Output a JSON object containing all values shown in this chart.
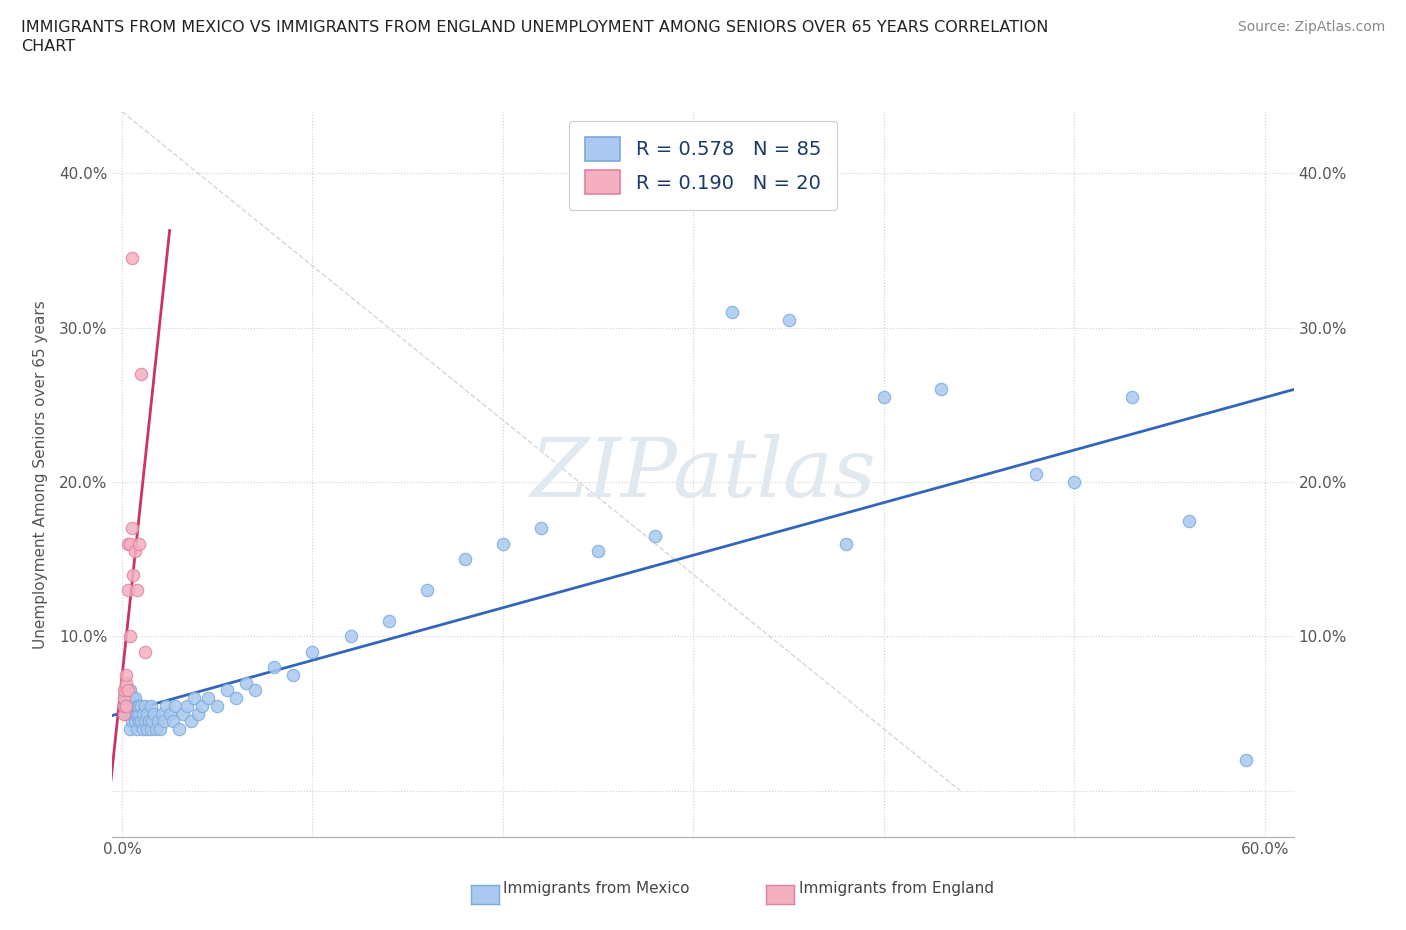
{
  "title_line1": "IMMIGRANTS FROM MEXICO VS IMMIGRANTS FROM ENGLAND UNEMPLOYMENT AMONG SENIORS OVER 65 YEARS CORRELATION",
  "title_line2": "CHART",
  "source": "Source: ZipAtlas.com",
  "ylabel": "Unemployment Among Seniors over 65 years",
  "xlim": [
    -0.005,
    0.615
  ],
  "ylim": [
    -0.03,
    0.44
  ],
  "mexico_color": "#aac8f0",
  "mexico_edge": "#7aaad8",
  "england_color": "#f4b0c0",
  "england_edge": "#e080a0",
  "trend_mexico_color": "#3366bb",
  "trend_england_color": "#cc3366",
  "watermark_color": "#e0e8f0",
  "label_mexico": "Immigrants from Mexico",
  "label_england": "Immigrants from England",
  "legend_text1": "R = 0.578   N = 85",
  "legend_text2": "R = 0.190   N = 20",
  "mexico_x": [
    0.001,
    0.001,
    0.002,
    0.002,
    0.002,
    0.003,
    0.003,
    0.003,
    0.004,
    0.004,
    0.004,
    0.004,
    0.005,
    0.005,
    0.005,
    0.005,
    0.006,
    0.006,
    0.006,
    0.007,
    0.007,
    0.007,
    0.007,
    0.008,
    0.008,
    0.008,
    0.009,
    0.009,
    0.009,
    0.01,
    0.01,
    0.011,
    0.011,
    0.012,
    0.012,
    0.013,
    0.013,
    0.014,
    0.015,
    0.015,
    0.016,
    0.017,
    0.018,
    0.019,
    0.02,
    0.021,
    0.022,
    0.023,
    0.025,
    0.027,
    0.028,
    0.03,
    0.032,
    0.034,
    0.036,
    0.038,
    0.04,
    0.042,
    0.045,
    0.05,
    0.055,
    0.06,
    0.065,
    0.07,
    0.08,
    0.09,
    0.1,
    0.12,
    0.14,
    0.16,
    0.18,
    0.2,
    0.22,
    0.25,
    0.28,
    0.32,
    0.35,
    0.38,
    0.4,
    0.43,
    0.48,
    0.5,
    0.53,
    0.56,
    0.59
  ],
  "mexico_y": [
    0.055,
    0.06,
    0.05,
    0.06,
    0.055,
    0.05,
    0.055,
    0.06,
    0.04,
    0.05,
    0.055,
    0.065,
    0.045,
    0.05,
    0.055,
    0.06,
    0.05,
    0.055,
    0.06,
    0.045,
    0.05,
    0.055,
    0.06,
    0.04,
    0.05,
    0.055,
    0.045,
    0.05,
    0.055,
    0.045,
    0.055,
    0.04,
    0.05,
    0.045,
    0.055,
    0.04,
    0.05,
    0.045,
    0.04,
    0.055,
    0.045,
    0.05,
    0.04,
    0.045,
    0.04,
    0.05,
    0.045,
    0.055,
    0.05,
    0.045,
    0.055,
    0.04,
    0.05,
    0.055,
    0.045,
    0.06,
    0.05,
    0.055,
    0.06,
    0.055,
    0.065,
    0.06,
    0.07,
    0.065,
    0.08,
    0.075,
    0.09,
    0.1,
    0.11,
    0.13,
    0.15,
    0.16,
    0.17,
    0.155,
    0.165,
    0.31,
    0.305,
    0.16,
    0.255,
    0.26,
    0.205,
    0.2,
    0.255,
    0.175,
    0.02
  ],
  "england_x": [
    0.001,
    0.001,
    0.001,
    0.001,
    0.002,
    0.002,
    0.002,
    0.003,
    0.003,
    0.003,
    0.004,
    0.004,
    0.005,
    0.005,
    0.006,
    0.007,
    0.008,
    0.009,
    0.01,
    0.012
  ],
  "england_y": [
    0.05,
    0.055,
    0.06,
    0.065,
    0.055,
    0.07,
    0.075,
    0.065,
    0.13,
    0.16,
    0.1,
    0.16,
    0.17,
    0.345,
    0.14,
    0.155,
    0.13,
    0.16,
    0.27,
    0.09
  ],
  "mexico_trend_x0": -0.01,
  "mexico_trend_x1": 0.62,
  "england_trend_x0": -0.01,
  "england_trend_x1": 0.025,
  "ref_line_x0": 0.0,
  "ref_line_x1": 0.44,
  "ref_line_y0": 0.44,
  "ref_line_y1": 0.0
}
